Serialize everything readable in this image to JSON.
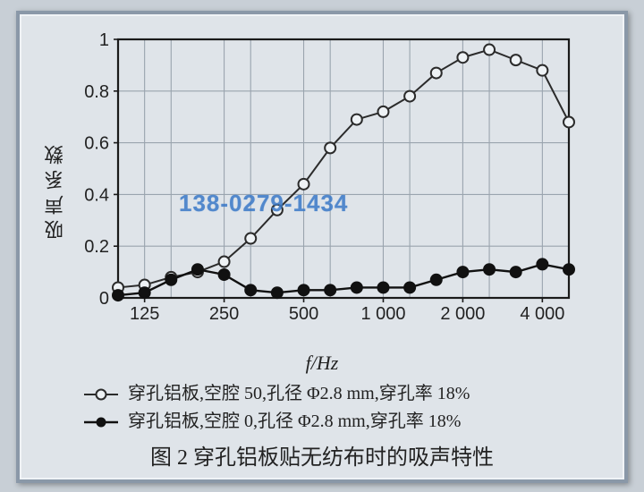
{
  "type": "line",
  "background_color": "#dfe4e9",
  "panel_border_color": "#8a98a8",
  "plot_area_bg": "#dfe4e9",
  "axis_color": "#1a1a1a",
  "grid_color": "#9aa4ae",
  "axis_line_width": 2.2,
  "grid_line_width": 1.1,
  "title_fontsize": 24,
  "label_fontsize": 22,
  "tick_fontsize": 20,
  "legend_fontsize": 20,
  "xlabel": "f/Hz",
  "ylabel": "吸声系数",
  "caption": "图 2  穿孔铝板贴无纺布时的吸声特性",
  "ylim": [
    0,
    1
  ],
  "ytick_step": 0.2,
  "yticks": [
    0,
    0.2,
    0.4,
    0.6,
    0.8,
    1
  ],
  "x_reference_hz": [
    100,
    125,
    160,
    200,
    250,
    315,
    400,
    500,
    630,
    800,
    1000,
    1250,
    1600,
    2000,
    2500,
    3150,
    4000,
    5000
  ],
  "xtick_labels": [
    "125",
    "250",
    "500",
    "1 000",
    "2 000",
    "4 000"
  ],
  "xtick_positions_idx": [
    1,
    4,
    7,
    10,
    13,
    16
  ],
  "vgrid_minor_idx": [
    2,
    5,
    8,
    11,
    14
  ],
  "series": [
    {
      "name": "cavity50",
      "legend": "穿孔铝板,空腔 50,孔径 Φ2.8 mm,穿孔率 18%",
      "marker": "circle-open",
      "marker_size": 6,
      "line_width": 2,
      "color": "#2b2b2b",
      "fill": "#eef2f5",
      "y": [
        0.04,
        0.05,
        0.08,
        0.1,
        0.14,
        0.23,
        0.34,
        0.44,
        0.58,
        0.69,
        0.72,
        0.78,
        0.87,
        0.93,
        0.96,
        0.92,
        0.88,
        0.68
      ]
    },
    {
      "name": "cavity0",
      "legend": "穿孔铝板,空腔 0,孔径 Φ2.8 mm,穿孔率 18%",
      "marker": "circle-solid",
      "marker_size": 6,
      "line_width": 2.4,
      "color": "#111111",
      "fill": "#111111",
      "y": [
        0.01,
        0.02,
        0.07,
        0.11,
        0.09,
        0.03,
        0.02,
        0.03,
        0.03,
        0.04,
        0.04,
        0.04,
        0.07,
        0.1,
        0.11,
        0.1,
        0.13,
        0.11
      ]
    }
  ],
  "watermark": "138-0279-1434",
  "watermark_color": "#3a79c8"
}
